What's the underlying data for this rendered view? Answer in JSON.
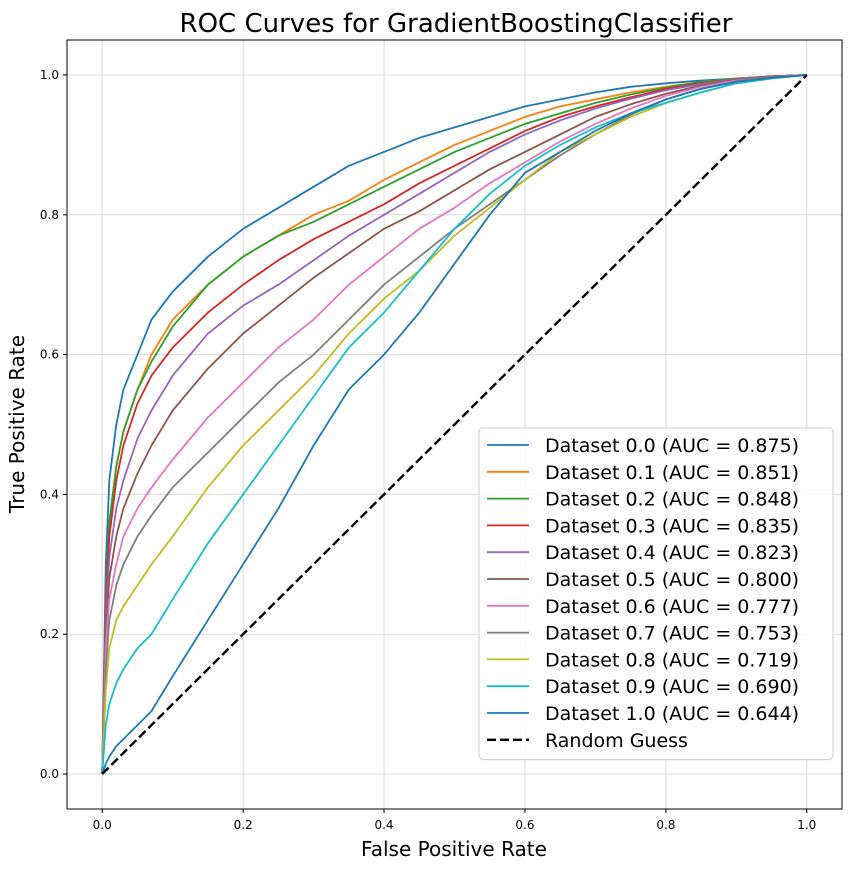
{
  "chart_data": {
    "type": "line",
    "title": "ROC Curves for GradientBoostingClassifier",
    "xlabel": "False Positive Rate",
    "ylabel": "True Positive Rate",
    "xlim": [
      -0.05,
      1.05
    ],
    "ylim": [
      -0.05,
      1.05
    ],
    "xticks": [
      "0.0",
      "0.2",
      "0.4",
      "0.6",
      "0.8",
      "1.0"
    ],
    "yticks": [
      "0.0",
      "0.2",
      "0.4",
      "0.6",
      "0.8",
      "1.0"
    ],
    "grid": true,
    "legend_position": "lower-right",
    "series": [
      {
        "name": "Dataset 0.0 (AUC = 0.875)",
        "color": "#1f77b4",
        "dashed": false,
        "x": [
          0,
          0.005,
          0.01,
          0.02,
          0.03,
          0.05,
          0.07,
          0.1,
          0.15,
          0.2,
          0.25,
          0.3,
          0.35,
          0.4,
          0.45,
          0.5,
          0.55,
          0.6,
          0.65,
          0.7,
          0.75,
          0.8,
          0.85,
          0.9,
          0.95,
          1.0
        ],
        "y": [
          0,
          0.3,
          0.42,
          0.5,
          0.55,
          0.6,
          0.65,
          0.69,
          0.74,
          0.78,
          0.81,
          0.84,
          0.87,
          0.89,
          0.91,
          0.925,
          0.94,
          0.955,
          0.965,
          0.975,
          0.983,
          0.988,
          0.992,
          0.995,
          0.998,
          1.0
        ]
      },
      {
        "name": "Dataset 0.1 (AUC = 0.851)",
        "color": "#ff7f0e",
        "dashed": false,
        "x": [
          0,
          0.005,
          0.01,
          0.02,
          0.03,
          0.05,
          0.07,
          0.1,
          0.15,
          0.2,
          0.25,
          0.3,
          0.35,
          0.4,
          0.45,
          0.5,
          0.55,
          0.6,
          0.65,
          0.7,
          0.75,
          0.8,
          0.85,
          0.9,
          0.95,
          1.0
        ],
        "y": [
          0,
          0.25,
          0.36,
          0.44,
          0.49,
          0.55,
          0.6,
          0.65,
          0.7,
          0.74,
          0.77,
          0.8,
          0.82,
          0.85,
          0.875,
          0.9,
          0.92,
          0.94,
          0.955,
          0.965,
          0.975,
          0.983,
          0.99,
          0.995,
          0.998,
          1.0
        ]
      },
      {
        "name": "Dataset 0.2 (AUC = 0.848)",
        "color": "#2ca02c",
        "dashed": false,
        "x": [
          0,
          0.005,
          0.01,
          0.02,
          0.03,
          0.05,
          0.07,
          0.1,
          0.15,
          0.2,
          0.25,
          0.3,
          0.35,
          0.4,
          0.45,
          0.5,
          0.55,
          0.6,
          0.65,
          0.7,
          0.75,
          0.8,
          0.85,
          0.9,
          0.95,
          1.0
        ],
        "y": [
          0,
          0.25,
          0.36,
          0.44,
          0.49,
          0.55,
          0.59,
          0.64,
          0.7,
          0.74,
          0.77,
          0.79,
          0.815,
          0.84,
          0.865,
          0.89,
          0.91,
          0.93,
          0.945,
          0.96,
          0.972,
          0.982,
          0.99,
          0.995,
          0.998,
          1.0
        ]
      },
      {
        "name": "Dataset 0.3 (AUC = 0.835)",
        "color": "#d62728",
        "dashed": false,
        "x": [
          0,
          0.005,
          0.01,
          0.02,
          0.03,
          0.05,
          0.07,
          0.1,
          0.15,
          0.2,
          0.25,
          0.3,
          0.35,
          0.4,
          0.45,
          0.5,
          0.55,
          0.6,
          0.65,
          0.7,
          0.75,
          0.8,
          0.85,
          0.9,
          0.95,
          1.0
        ],
        "y": [
          0,
          0.24,
          0.34,
          0.42,
          0.47,
          0.53,
          0.57,
          0.61,
          0.66,
          0.7,
          0.735,
          0.765,
          0.79,
          0.815,
          0.845,
          0.87,
          0.895,
          0.92,
          0.94,
          0.955,
          0.968,
          0.98,
          0.988,
          0.994,
          0.998,
          1.0
        ]
      },
      {
        "name": "Dataset 0.4 (AUC = 0.823)",
        "color": "#9467bd",
        "dashed": false,
        "x": [
          0,
          0.005,
          0.01,
          0.02,
          0.03,
          0.05,
          0.07,
          0.1,
          0.15,
          0.2,
          0.25,
          0.3,
          0.35,
          0.4,
          0.45,
          0.5,
          0.55,
          0.6,
          0.65,
          0.7,
          0.75,
          0.8,
          0.85,
          0.9,
          0.95,
          1.0
        ],
        "y": [
          0,
          0.22,
          0.31,
          0.38,
          0.42,
          0.48,
          0.52,
          0.57,
          0.63,
          0.67,
          0.7,
          0.735,
          0.77,
          0.8,
          0.83,
          0.86,
          0.89,
          0.915,
          0.935,
          0.952,
          0.966,
          0.978,
          0.987,
          0.994,
          0.998,
          1.0
        ]
      },
      {
        "name": "Dataset 0.5 (AUC = 0.800)",
        "color": "#8c564b",
        "dashed": false,
        "x": [
          0,
          0.005,
          0.01,
          0.02,
          0.03,
          0.05,
          0.07,
          0.1,
          0.15,
          0.2,
          0.25,
          0.3,
          0.35,
          0.4,
          0.45,
          0.5,
          0.55,
          0.6,
          0.65,
          0.7,
          0.75,
          0.8,
          0.85,
          0.9,
          0.95,
          1.0
        ],
        "y": [
          0,
          0.2,
          0.28,
          0.34,
          0.38,
          0.43,
          0.47,
          0.52,
          0.58,
          0.63,
          0.67,
          0.71,
          0.745,
          0.78,
          0.805,
          0.835,
          0.865,
          0.89,
          0.915,
          0.94,
          0.958,
          0.973,
          0.985,
          0.993,
          0.998,
          1.0
        ]
      },
      {
        "name": "Dataset 0.6 (AUC = 0.777)",
        "color": "#e377c2",
        "dashed": false,
        "x": [
          0,
          0.005,
          0.01,
          0.02,
          0.03,
          0.05,
          0.07,
          0.1,
          0.15,
          0.2,
          0.25,
          0.3,
          0.35,
          0.4,
          0.45,
          0.5,
          0.55,
          0.6,
          0.65,
          0.7,
          0.75,
          0.8,
          0.85,
          0.9,
          0.95,
          1.0
        ],
        "y": [
          0,
          0.18,
          0.25,
          0.3,
          0.34,
          0.38,
          0.41,
          0.45,
          0.51,
          0.56,
          0.61,
          0.65,
          0.7,
          0.74,
          0.78,
          0.81,
          0.845,
          0.875,
          0.905,
          0.93,
          0.952,
          0.97,
          0.983,
          0.992,
          0.997,
          1.0
        ]
      },
      {
        "name": "Dataset 0.7 (AUC = 0.753)",
        "color": "#7f7f7f",
        "dashed": false,
        "x": [
          0,
          0.005,
          0.01,
          0.02,
          0.03,
          0.05,
          0.07,
          0.1,
          0.15,
          0.2,
          0.25,
          0.3,
          0.35,
          0.4,
          0.45,
          0.5,
          0.55,
          0.6,
          0.65,
          0.7,
          0.75,
          0.8,
          0.85,
          0.9,
          0.95,
          1.0
        ],
        "y": [
          0,
          0.15,
          0.22,
          0.27,
          0.3,
          0.34,
          0.37,
          0.41,
          0.46,
          0.51,
          0.56,
          0.6,
          0.65,
          0.7,
          0.74,
          0.78,
          0.815,
          0.85,
          0.885,
          0.915,
          0.943,
          0.965,
          0.98,
          0.991,
          0.997,
          1.0
        ]
      },
      {
        "name": "Dataset 0.8 (AUC = 0.719)",
        "color": "#bcbd22",
        "dashed": false,
        "x": [
          0,
          0.005,
          0.01,
          0.02,
          0.03,
          0.05,
          0.07,
          0.1,
          0.15,
          0.2,
          0.25,
          0.3,
          0.35,
          0.4,
          0.45,
          0.5,
          0.55,
          0.6,
          0.65,
          0.7,
          0.75,
          0.8,
          0.85,
          0.9,
          0.95,
          1.0
        ],
        "y": [
          0,
          0.12,
          0.18,
          0.22,
          0.24,
          0.27,
          0.3,
          0.34,
          0.41,
          0.47,
          0.52,
          0.57,
          0.63,
          0.68,
          0.72,
          0.77,
          0.81,
          0.85,
          0.89,
          0.915,
          0.94,
          0.96,
          0.975,
          0.988,
          0.995,
          1.0
        ]
      },
      {
        "name": "Dataset 0.9 (AUC = 0.690)",
        "color": "#17becf",
        "dashed": false,
        "x": [
          0,
          0.005,
          0.01,
          0.02,
          0.03,
          0.05,
          0.07,
          0.1,
          0.15,
          0.2,
          0.25,
          0.3,
          0.35,
          0.4,
          0.45,
          0.5,
          0.55,
          0.6,
          0.65,
          0.7,
          0.75,
          0.8,
          0.85,
          0.9,
          0.95,
          1.0
        ],
        "y": [
          0,
          0.07,
          0.1,
          0.13,
          0.15,
          0.18,
          0.2,
          0.25,
          0.33,
          0.4,
          0.47,
          0.54,
          0.61,
          0.66,
          0.72,
          0.78,
          0.83,
          0.87,
          0.9,
          0.925,
          0.945,
          0.96,
          0.975,
          0.988,
          0.995,
          1.0
        ]
      },
      {
        "name": "Dataset 1.0 (AUC = 0.644)",
        "color": "#1f77b4",
        "dashed": false,
        "x": [
          0,
          0.005,
          0.01,
          0.02,
          0.03,
          0.05,
          0.07,
          0.1,
          0.15,
          0.2,
          0.25,
          0.3,
          0.35,
          0.4,
          0.45,
          0.5,
          0.55,
          0.6,
          0.65,
          0.7,
          0.75,
          0.8,
          0.85,
          0.9,
          0.95,
          1.0
        ],
        "y": [
          0,
          0.015,
          0.025,
          0.04,
          0.05,
          0.07,
          0.09,
          0.14,
          0.22,
          0.3,
          0.38,
          0.47,
          0.55,
          0.6,
          0.66,
          0.73,
          0.8,
          0.86,
          0.89,
          0.92,
          0.945,
          0.965,
          0.98,
          0.99,
          0.996,
          1.0
        ]
      },
      {
        "name": "Random Guess",
        "color": "#000000",
        "dashed": true,
        "x": [
          0,
          1
        ],
        "y": [
          0,
          1
        ]
      }
    ]
  }
}
